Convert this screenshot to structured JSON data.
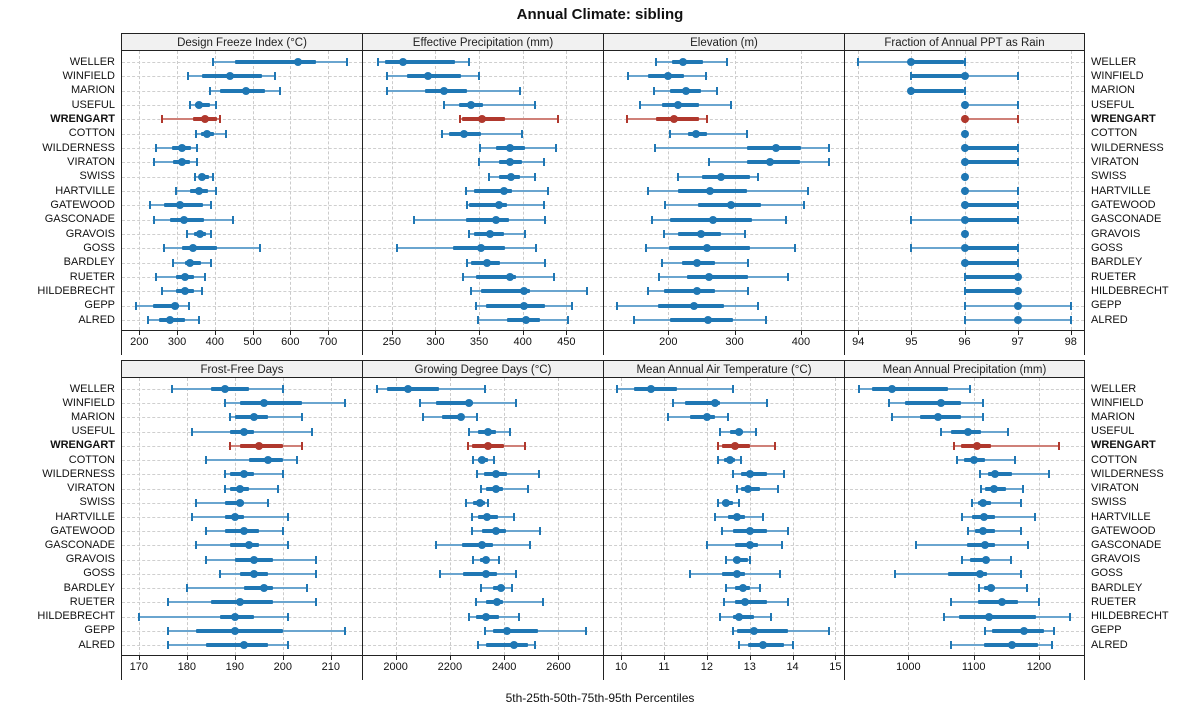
{
  "title": "Annual Climate: sibling",
  "caption": "5th-25th-50th-75th-95th Percentiles",
  "highlight_station": "WRENGART",
  "colors": {
    "series_blue": "#1f77b4",
    "series_blue_light": "#6aa5cf",
    "series_red": "#b0382d",
    "series_red_light": "#cf8078",
    "header_bg": "#f1f1f1",
    "panel_border": "#222222",
    "gridline": "#cbcbcb",
    "text": "#111111"
  },
  "chart_data": {
    "type": "dotplot-percentiles",
    "percentiles": [
      5,
      25,
      50,
      75,
      95
    ],
    "legend_position": "none",
    "grid": "dashed",
    "stations": [
      "WELLER",
      "WINFIELD",
      "MARION",
      "USEFUL",
      "WRENGART",
      "COTTON",
      "WILDERNESS",
      "VIRATON",
      "SWISS",
      "HARTVILLE",
      "GATEWOOD",
      "GASCONADE",
      "GRAVOIS",
      "GOSS",
      "BARDLEY",
      "RUETER",
      "HILDEBRECHT",
      "GEPP",
      "ALRED"
    ],
    "panels": [
      {
        "title": "Design Freeze Index (°C)",
        "row": 0,
        "xlim": [
          154,
          790
        ],
        "ticks": [
          200,
          300,
          400,
          500,
          600,
          700
        ],
        "values": [
          [
            396,
            453,
            620,
            668,
            750
          ],
          [
            330,
            366,
            439,
            524,
            559
          ],
          [
            388,
            414,
            482,
            532,
            572
          ],
          [
            335,
            348,
            359,
            388,
            403
          ],
          [
            259,
            341,
            375,
            405,
            414
          ],
          [
            350,
            364,
            379,
            399,
            430
          ],
          [
            243,
            287,
            313,
            337,
            352
          ],
          [
            240,
            290,
            312,
            335,
            352
          ],
          [
            347,
            357,
            367,
            385,
            394
          ],
          [
            297,
            335,
            357,
            381,
            402
          ],
          [
            227,
            265,
            308,
            370,
            390
          ],
          [
            239,
            280,
            319,
            370,
            449
          ],
          [
            326,
            346,
            361,
            376,
            390
          ],
          [
            265,
            313,
            341,
            405,
            520
          ],
          [
            289,
            322,
            335,
            364,
            390
          ],
          [
            245,
            297,
            322,
            346,
            373
          ],
          [
            259,
            297,
            320,
            344,
            367
          ],
          [
            190,
            235,
            294,
            305,
            332
          ],
          [
            224,
            252,
            280,
            322,
            359
          ]
        ]
      },
      {
        "title": "Effective Precipitation (mm)",
        "row": 0,
        "xlim": [
          217,
          492
        ],
        "ticks": [
          250,
          300,
          350,
          400,
          450
        ],
        "values": [
          [
            234,
            242,
            263,
            322,
            338
          ],
          [
            244,
            267,
            291,
            329,
            350
          ],
          [
            245,
            288,
            310,
            336,
            397
          ],
          [
            310,
            327,
            341,
            354,
            414
          ],
          [
            328,
            331,
            353,
            380,
            440
          ],
          [
            308,
            316,
            333,
            352,
            399
          ],
          [
            351,
            369,
            385,
            403,
            438
          ],
          [
            350,
            373,
            385,
            399,
            424
          ],
          [
            361,
            373,
            387,
            397,
            414
          ],
          [
            335,
            344,
            378,
            388,
            429
          ],
          [
            336,
            339,
            373,
            382,
            424
          ],
          [
            275,
            335,
            369,
            384,
            426
          ],
          [
            339,
            344,
            362,
            378,
            403
          ],
          [
            256,
            320,
            352,
            380,
            415
          ],
          [
            336,
            341,
            359,
            374,
            425
          ],
          [
            332,
            346,
            385,
            392,
            436
          ],
          [
            341,
            352,
            401,
            408,
            474
          ],
          [
            346,
            358,
            402,
            425,
            456
          ],
          [
            349,
            382,
            404,
            420,
            452
          ]
        ]
      },
      {
        "title": "Elevation (m)",
        "row": 0,
        "xlim": [
          103,
          465
        ],
        "ticks": [
          200,
          300,
          400
        ],
        "values": [
          [
            182,
            205,
            222,
            253,
            289
          ],
          [
            139,
            170,
            200,
            223,
            257
          ],
          [
            179,
            203,
            227,
            250,
            274
          ],
          [
            158,
            190,
            214,
            247,
            295
          ],
          [
            137,
            182,
            209,
            247,
            259
          ],
          [
            203,
            230,
            242,
            258,
            318
          ],
          [
            180,
            318,
            362,
            400,
            442
          ],
          [
            262,
            318,
            354,
            398,
            442
          ],
          [
            214,
            251,
            280,
            323,
            335
          ],
          [
            169,
            214,
            263,
            319,
            410
          ],
          [
            195,
            245,
            295,
            340,
            405
          ],
          [
            175,
            203,
            268,
            326,
            378
          ],
          [
            194,
            215,
            250,
            280,
            315
          ],
          [
            167,
            201,
            259,
            323,
            391
          ],
          [
            190,
            220,
            243,
            271,
            320
          ],
          [
            186,
            228,
            261,
            320,
            381
          ],
          [
            170,
            194,
            243,
            270,
            320
          ],
          [
            122,
            184,
            238,
            284,
            335
          ],
          [
            149,
            203,
            260,
            298,
            348
          ]
        ]
      },
      {
        "title": "Fraction of Annual PPT as Rain",
        "row": 0,
        "xlim": [
          93.75,
          98.25
        ],
        "ticks": [
          94,
          95,
          96,
          97,
          98
        ],
        "values": [
          [
            94,
            95,
            95,
            96,
            96
          ],
          [
            95,
            95,
            96,
            96,
            97
          ],
          [
            95,
            95,
            95,
            96,
            96
          ],
          [
            96,
            96,
            96,
            96,
            97
          ],
          [
            96,
            96,
            96,
            96,
            97
          ],
          [
            96,
            96,
            96,
            96,
            96
          ],
          [
            96,
            96,
            96,
            97,
            97
          ],
          [
            96,
            96,
            96,
            97,
            97
          ],
          [
            96,
            96,
            96,
            96,
            96
          ],
          [
            96,
            96,
            96,
            96,
            97
          ],
          [
            96,
            96,
            96,
            97,
            97
          ],
          [
            95,
            96,
            96,
            97,
            97
          ],
          [
            96,
            96,
            96,
            96,
            96
          ],
          [
            95,
            96,
            96,
            97,
            97
          ],
          [
            96,
            96,
            96,
            97,
            97
          ],
          [
            96,
            96,
            97,
            97,
            97
          ],
          [
            96,
            96,
            97,
            97,
            97
          ],
          [
            96,
            97,
            97,
            97,
            98
          ],
          [
            96,
            97,
            97,
            97,
            98
          ]
        ]
      },
      {
        "title": "Frost-Free Days",
        "row": 1,
        "xlim": [
          166.5,
          216.5
        ],
        "ticks": [
          170,
          180,
          190,
          200,
          210
        ],
        "values": [
          [
            177,
            185,
            188,
            193,
            200
          ],
          [
            188,
            191,
            196,
            204,
            213
          ],
          [
            189,
            190,
            194,
            197,
            204
          ],
          [
            181,
            189,
            192,
            194,
            206
          ],
          [
            189,
            191,
            195,
            200,
            204
          ],
          [
            184,
            193,
            197,
            200,
            203
          ],
          [
            188,
            189,
            192,
            194,
            200
          ],
          [
            188,
            189,
            191,
            193,
            199
          ],
          [
            182,
            188,
            191,
            192,
            197
          ],
          [
            181,
            188,
            190,
            192,
            201
          ],
          [
            184,
            188,
            192,
            195,
            200
          ],
          [
            182,
            189,
            193,
            195,
            201
          ],
          [
            184,
            190,
            194,
            198,
            207
          ],
          [
            187,
            191,
            194,
            197,
            207
          ],
          [
            180,
            192,
            196,
            198,
            205
          ],
          [
            176,
            185,
            191,
            198,
            207
          ],
          [
            170,
            187,
            190,
            194,
            201
          ],
          [
            176,
            182,
            190,
            200,
            213
          ],
          [
            176,
            184,
            192,
            197,
            201
          ]
        ]
      },
      {
        "title": "Growing Degree Days (°C)",
        "row": 1,
        "xlim": [
          1880,
          2764
        ],
        "ticks": [
          2000,
          2200,
          2400,
          2600
        ],
        "values": [
          [
            1930,
            1970,
            2045,
            2160,
            2330
          ],
          [
            2090,
            2150,
            2270,
            2285,
            2445
          ],
          [
            2100,
            2170,
            2240,
            2250,
            2300
          ],
          [
            2270,
            2305,
            2340,
            2370,
            2420
          ],
          [
            2265,
            2280,
            2340,
            2400,
            2475
          ],
          [
            2287,
            2302,
            2320,
            2340,
            2362
          ],
          [
            2300,
            2325,
            2370,
            2410,
            2530
          ],
          [
            2315,
            2333,
            2370,
            2395,
            2487
          ],
          [
            2260,
            2285,
            2310,
            2330,
            2340
          ],
          [
            2280,
            2305,
            2338,
            2378,
            2435
          ],
          [
            2280,
            2318,
            2370,
            2406,
            2532
          ],
          [
            2150,
            2245,
            2318,
            2360,
            2495
          ],
          [
            2285,
            2310,
            2333,
            2345,
            2380
          ],
          [
            2165,
            2250,
            2333,
            2372,
            2442
          ],
          [
            2315,
            2360,
            2387,
            2402,
            2430
          ],
          [
            2297,
            2333,
            2375,
            2394,
            2544
          ],
          [
            2269,
            2297,
            2333,
            2382,
            2455
          ],
          [
            2330,
            2360,
            2411,
            2524,
            2700
          ],
          [
            2302,
            2333,
            2435,
            2487,
            2515
          ]
        ]
      },
      {
        "title": "Mean Annual Air Temperature (°C)",
        "row": 1,
        "xlim": [
          9.6,
          15.2
        ],
        "ticks": [
          10,
          11,
          12,
          13,
          14,
          15
        ],
        "values": [
          [
            9.9,
            10.3,
            10.7,
            11.3,
            12.6
          ],
          [
            11.2,
            11.5,
            12.2,
            12.3,
            13.4
          ],
          [
            11.1,
            11.6,
            12.0,
            12.2,
            12.5
          ],
          [
            12.3,
            12.55,
            12.75,
            12.85,
            13.15
          ],
          [
            12.25,
            12.35,
            12.65,
            13.0,
            13.6
          ],
          [
            12.25,
            12.4,
            12.55,
            12.65,
            12.8
          ],
          [
            12.6,
            12.8,
            13.0,
            13.4,
            13.8
          ],
          [
            12.7,
            12.8,
            12.95,
            13.25,
            13.65
          ],
          [
            12.25,
            12.35,
            12.45,
            12.6,
            12.75
          ],
          [
            12.2,
            12.5,
            12.7,
            12.9,
            13.3
          ],
          [
            12.35,
            12.6,
            13.0,
            13.4,
            13.9
          ],
          [
            12.0,
            12.65,
            13.0,
            13.2,
            13.75
          ],
          [
            12.45,
            12.6,
            12.7,
            12.95,
            13.0
          ],
          [
            11.6,
            12.35,
            12.7,
            12.9,
            13.7
          ],
          [
            12.45,
            12.65,
            12.85,
            13.0,
            13.25
          ],
          [
            12.4,
            12.65,
            12.9,
            13.4,
            13.9
          ],
          [
            12.3,
            12.6,
            12.75,
            13.1,
            13.5
          ],
          [
            12.6,
            12.7,
            13.1,
            13.9,
            14.85
          ],
          [
            12.75,
            12.95,
            13.3,
            13.8,
            14.0
          ]
        ]
      },
      {
        "title": "Mean Annual Precipitation (mm)",
        "row": 1,
        "xlim": [
          903,
          1269
        ],
        "ticks": [
          1000,
          1100,
          1200
        ],
        "values": [
          [
            925,
            945,
            975,
            1060,
            1095
          ],
          [
            970,
            995,
            1050,
            1080,
            1115
          ],
          [
            975,
            1018,
            1045,
            1080,
            1115
          ],
          [
            1050,
            1065,
            1092,
            1112,
            1152
          ],
          [
            1070,
            1080,
            1105,
            1126,
            1230
          ],
          [
            1075,
            1085,
            1100,
            1117,
            1163
          ],
          [
            1110,
            1122,
            1133,
            1158,
            1215
          ],
          [
            1111,
            1118,
            1131,
            1150,
            1175
          ],
          [
            1097,
            1106,
            1115,
            1126,
            1172
          ],
          [
            1082,
            1098,
            1116,
            1133,
            1194
          ],
          [
            1091,
            1102,
            1114,
            1132,
            1172
          ],
          [
            1012,
            1090,
            1118,
            1133,
            1184
          ],
          [
            1082,
            1094,
            1119,
            1123,
            1157
          ],
          [
            980,
            1060,
            1110,
            1121,
            1173
          ],
          [
            1108,
            1116,
            1126,
            1133,
            1182
          ],
          [
            1065,
            1106,
            1143,
            1168,
            1200
          ],
          [
            1055,
            1077,
            1123,
            1196,
            1248
          ],
          [
            1118,
            1128,
            1177,
            1208,
            1223
          ],
          [
            1065,
            1116,
            1159,
            1198,
            1220
          ]
        ]
      }
    ]
  }
}
